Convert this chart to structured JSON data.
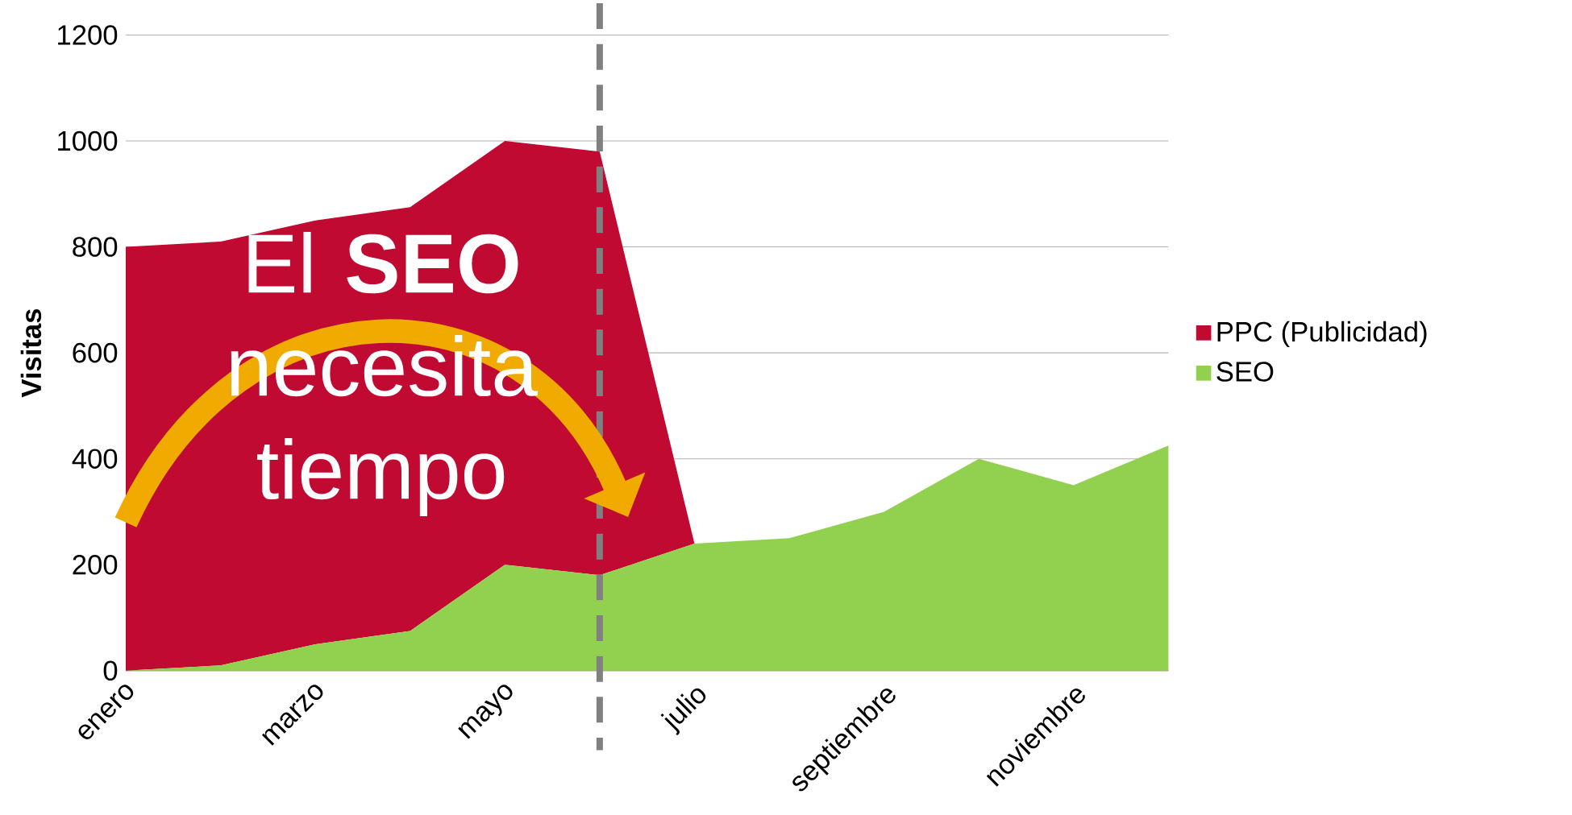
{
  "chart_data": {
    "type": "area",
    "stacked": true,
    "ylabel": "Visitas",
    "categories": [
      "enero",
      null,
      "marzo",
      null,
      "mayo",
      null,
      "julio",
      null,
      "septiembre",
      null,
      "noviembre",
      null
    ],
    "series": [
      {
        "name": "SEO",
        "color": "#92d050",
        "values": [
          0,
          10,
          50,
          75,
          200,
          180,
          240,
          250,
          300,
          400,
          350,
          425
        ]
      },
      {
        "name": "PPC (Publicidad)",
        "color": "#c00a32",
        "values": [
          800,
          800,
          800,
          800,
          800,
          800,
          0,
          0,
          0,
          0,
          0,
          0
        ]
      }
    ],
    "ylim": [
      0,
      1200
    ],
    "yticks": [
      0,
      200,
      400,
      600,
      800,
      1000,
      1200
    ],
    "grid": "y",
    "legend": "right",
    "annotations": [
      "El **SEO** necesita tiempo"
    ]
  }
}
